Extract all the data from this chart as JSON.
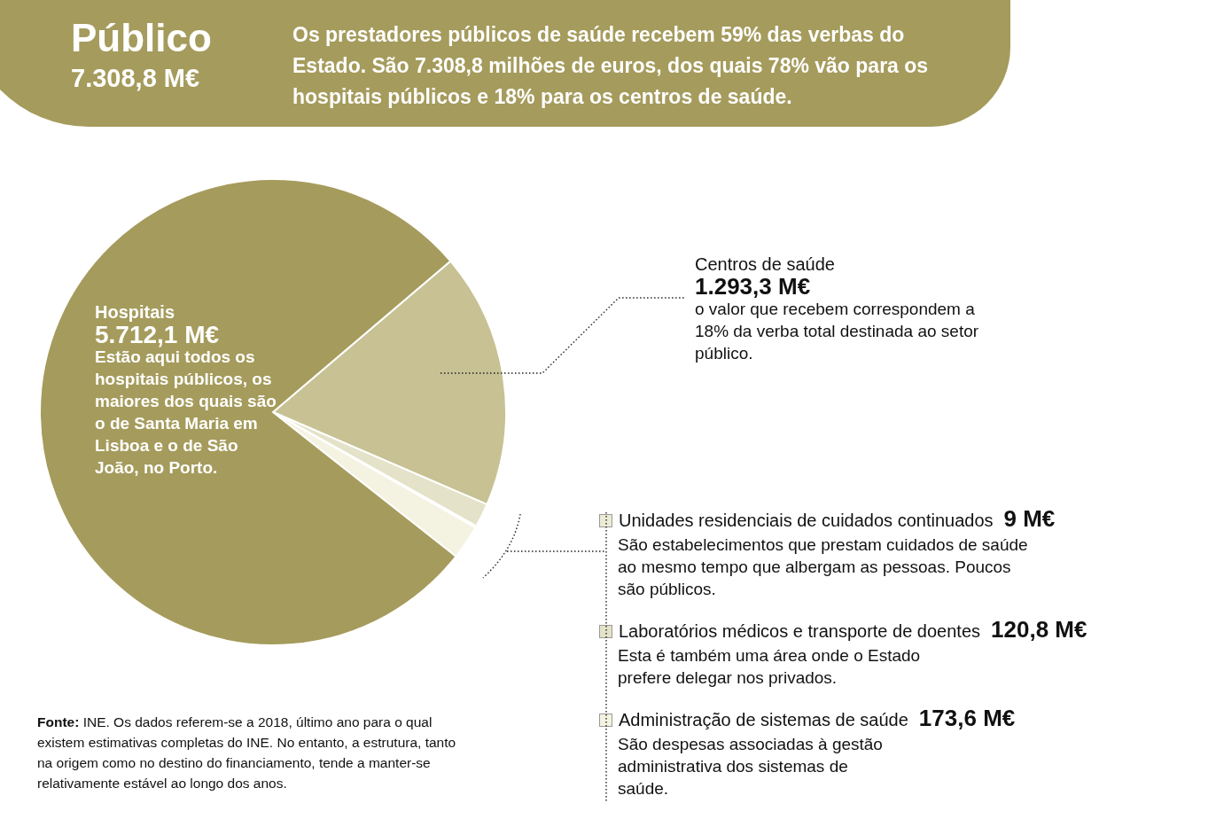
{
  "chart_data": {
    "type": "pie",
    "title": "Público",
    "subtitle": "7.308,8 M€",
    "categories": [
      "Centros de saúde",
      "Laboratórios médicos e transporte de doentes",
      "Unidades residenciais de cuidados continuados",
      "Administração de sistemas de saúde",
      "Hospitais"
    ],
    "values": [
      1293.3,
      120.8,
      9,
      173.6,
      5712.1
    ],
    "legend": "right",
    "colors": [
      "#c7c194",
      "#e4e2c8",
      "#ecebd6",
      "#f4f2e1",
      "#a59b5c"
    ],
    "value_labels": [
      "1.293,3 M€",
      "120,8 M€",
      "9 M€",
      "173,6 M€",
      "5.712,1 M€"
    ],
    "annotations": [
      "Os prestadores públicos de saúde recebem 59% das verbas do Estado. São 7.308,8 milhões de euros, dos quais 78% vão para os hospitais públicos e 18% para os centros de saúde.",
      "o valor que recebem correspondem a 18% da verba total destinada ao setor público.",
      "Esta é também uma área onde o Estado prefere delegar nos privados.",
      "São estabelecimentos que prestam cuidados de saúde ao mesmo tempo que albergam as pessoas. Poucos são públicos.",
      "São despesas associadas à gestão administrativa dos sistemas de saúde.",
      "Estão aqui todos os hospitais públicos, os maiores dos quais são o de Santa Maria em Lisboa e o de São João, no Porto.",
      "Fonte: INE. Os dados referem-se a 2018, último ano para o qual existem estimativas completas do INE. No entanto, a estrutura, tanto na origem como no destino do financiamento, tende a manter-se relativamente estável ao longo dos anos."
    ]
  }
}
